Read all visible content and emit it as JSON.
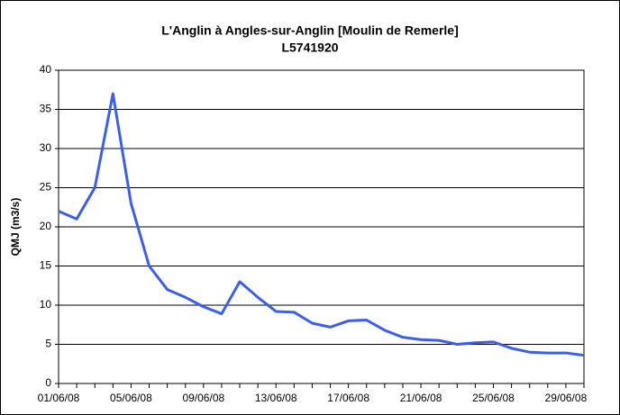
{
  "chart_data": {
    "type": "line",
    "title": "L'Anglin à Angles-sur-Anglin [Moulin de Remerle]",
    "subtitle": "L5741920",
    "y_label": "QMJ (m3/s)",
    "categories": [
      "01/06/08",
      null,
      null,
      null,
      "05/06/08",
      null,
      null,
      null,
      "09/06/08",
      null,
      null,
      null,
      "13/06/08",
      null,
      null,
      null,
      "17/06/08",
      null,
      null,
      null,
      "21/06/08",
      null,
      null,
      null,
      "25/06/08",
      null,
      null,
      null,
      "29/06/08",
      null
    ],
    "series": [
      {
        "name": "QMJ",
        "color": "#3a5ff0",
        "values": [
          22,
          21,
          25,
          37,
          23,
          15,
          12,
          11,
          9.8,
          8.9,
          13,
          11,
          9.2,
          9.1,
          7.7,
          7.2,
          8,
          8.1,
          6.8,
          5.9,
          5.6,
          5.5,
          5,
          5.2,
          5.3,
          4.5,
          4,
          3.9,
          3.9,
          3.6
        ]
      }
    ],
    "ylim": [
      0,
      40
    ],
    "yticks": [
      0,
      5,
      10,
      15,
      20,
      25,
      30,
      35,
      40
    ],
    "grid": true
  }
}
